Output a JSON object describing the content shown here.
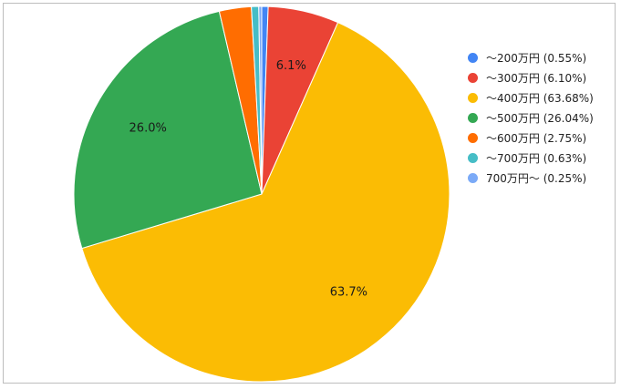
{
  "chart_data": {
    "type": "pie",
    "title": "",
    "categories": [
      "～200万円",
      "～300万円",
      "～400万円",
      "～500万円",
      "～600万円",
      "～700万円",
      "700万円～"
    ],
    "values": [
      0.55,
      6.1,
      63.68,
      26.04,
      2.75,
      0.63,
      0.25
    ],
    "legend_labels": [
      "～200万円 (0.55%)",
      "～300万円 (6.10%)",
      "～400万円 (63.68%)",
      "～500万円 (26.04%)",
      "～600万円 (2.75%)",
      "～700万円 (0.63%)",
      "700万円～ (0.25%)"
    ],
    "slice_labels": [
      "",
      "6.1%",
      "63.7%",
      "26.0%",
      "",
      "",
      ""
    ],
    "colors": [
      "#4285f4",
      "#ea4335",
      "#fbbc04",
      "#34a853",
      "#ff6d01",
      "#46bdc6",
      "#7baaf7"
    ],
    "legend_position": "right",
    "start_angle": "top",
    "direction": "clockwise"
  }
}
